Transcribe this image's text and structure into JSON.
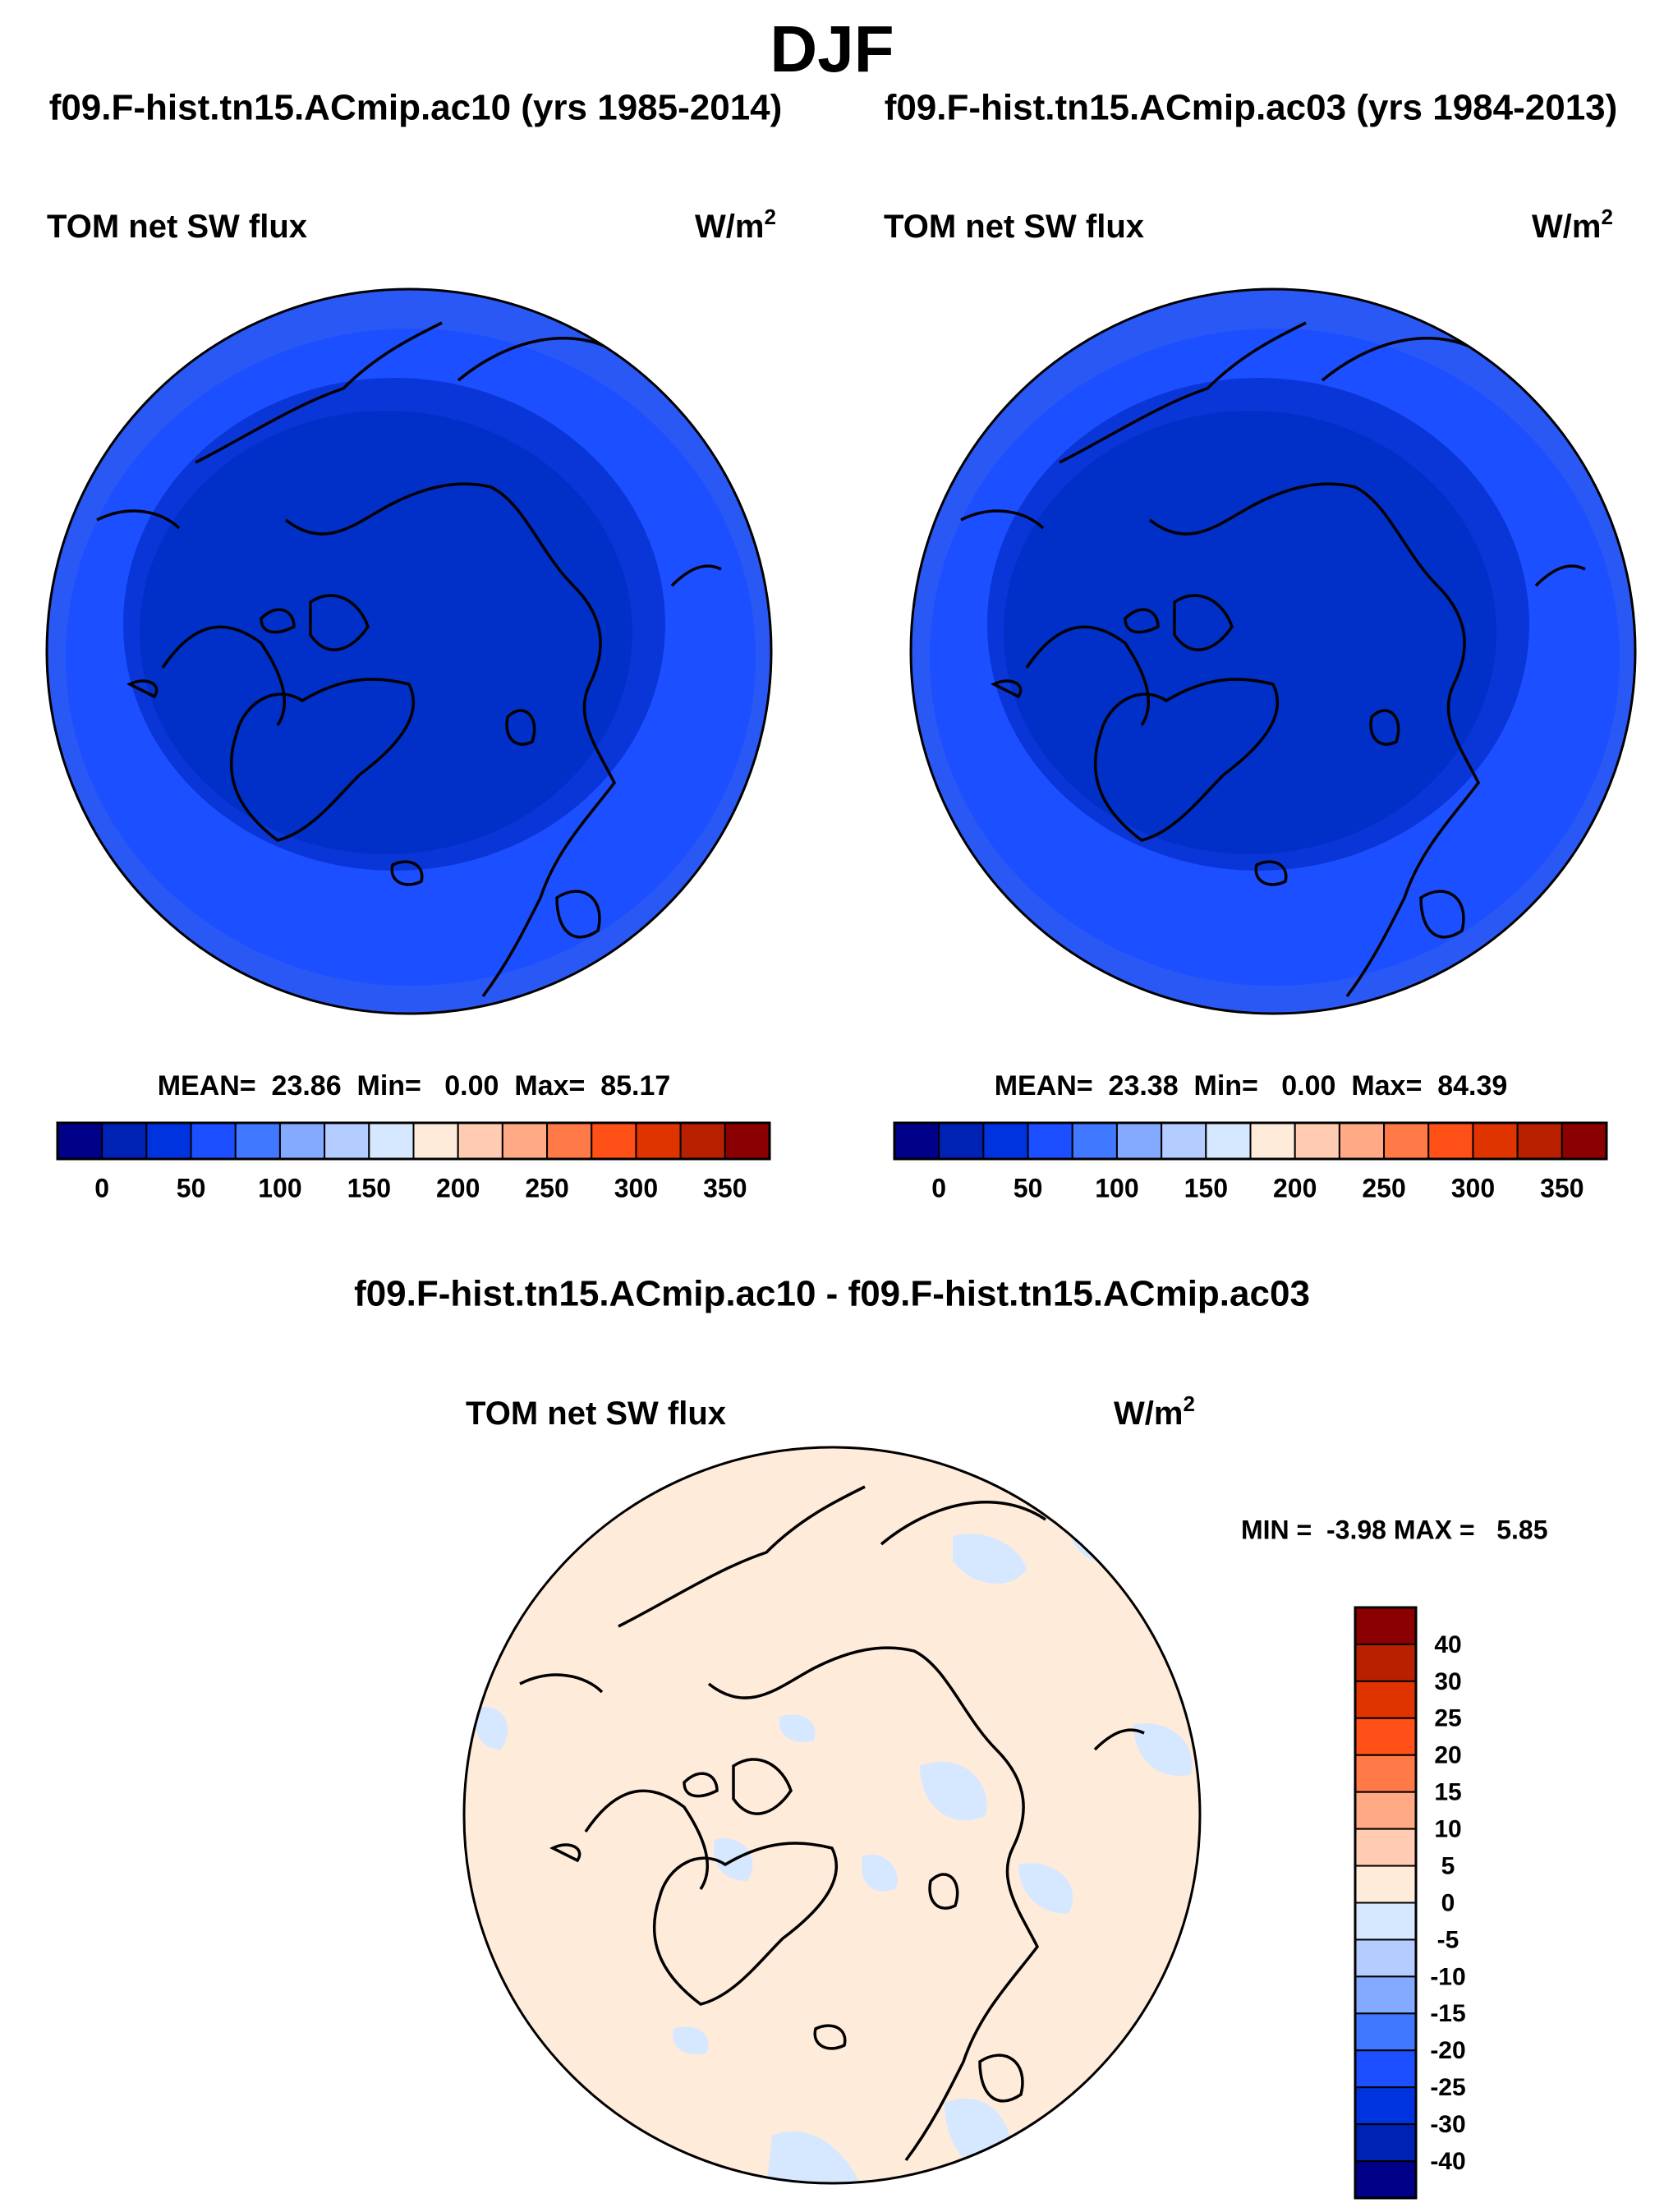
{
  "title": "DJF",
  "case_left": "f09.F-hist.tn15.ACmip.ac10 (yrs 1985-2014)",
  "case_right": "f09.F-hist.tn15.ACmip.ac03 (yrs 1984-2013)",
  "diff_title": "f09.F-hist.tn15.ACmip.ac10 - f09.F-hist.tn15.ACmip.ac03",
  "chart_data": [
    {
      "type": "heatmap",
      "projection": "north polar stereographic",
      "variable": "TOM net SW flux",
      "units_base": "W/m",
      "units_exp": "2",
      "stats": "MEAN=  23.86  Min=   0.00  Max=  85.17",
      "mean": 23.86,
      "min": 0.0,
      "max": 85.17,
      "colorbar": {
        "orientation": "horizontal",
        "levels": [
          0,
          25,
          50,
          75,
          100,
          125,
          150,
          175,
          200,
          225,
          250,
          275,
          300,
          325,
          350
        ],
        "tick_labels": [
          "0",
          "50",
          "100",
          "150",
          "200",
          "250",
          "300",
          "350"
        ],
        "colors": [
          "#000088",
          "#0022b4",
          "#0033e0",
          "#1c4fff",
          "#4078ff",
          "#84aaff",
          "#b4ccff",
          "#d6e8ff",
          "#ffebda",
          "#ffcbb2",
          "#ffaa84",
          "#ff7a46",
          "#ff5018",
          "#e03400",
          "#b82000",
          "#8b0000"
        ]
      }
    },
    {
      "type": "heatmap",
      "projection": "north polar stereographic",
      "variable": "TOM net SW flux",
      "units_base": "W/m",
      "units_exp": "2",
      "stats": "MEAN=  23.38  Min=   0.00  Max=  84.39",
      "mean": 23.38,
      "min": 0.0,
      "max": 84.39,
      "colorbar": {
        "orientation": "horizontal",
        "levels": [
          0,
          25,
          50,
          75,
          100,
          125,
          150,
          175,
          200,
          225,
          250,
          275,
          300,
          325,
          350
        ],
        "tick_labels": [
          "0",
          "50",
          "100",
          "150",
          "200",
          "250",
          "300",
          "350"
        ],
        "colors": [
          "#000088",
          "#0022b4",
          "#0033e0",
          "#1c4fff",
          "#4078ff",
          "#84aaff",
          "#b4ccff",
          "#d6e8ff",
          "#ffebda",
          "#ffcbb2",
          "#ffaa84",
          "#ff7a46",
          "#ff5018",
          "#e03400",
          "#b82000",
          "#8b0000"
        ]
      }
    },
    {
      "type": "heatmap",
      "projection": "north polar stereographic",
      "variable": "TOM net SW flux",
      "units_base": "W/m",
      "units_exp": "2",
      "stats": "MIN =  -3.98 MAX =   5.85",
      "min": -3.98,
      "max": 5.85,
      "colorbar": {
        "orientation": "vertical",
        "levels": [
          -40,
          -30,
          -25,
          -20,
          -15,
          -10,
          -5,
          0,
          5,
          10,
          15,
          20,
          25,
          30,
          40
        ],
        "tick_labels": [
          "40",
          "30",
          "25",
          "20",
          "15",
          "10",
          "5",
          "0",
          "-5",
          "-10",
          "-15",
          "-20",
          "-25",
          "-30",
          "-40"
        ],
        "colors": [
          "#8b0000",
          "#b82000",
          "#e03400",
          "#ff5018",
          "#ff7a46",
          "#ffaa84",
          "#ffcbb2",
          "#ffebda",
          "#d6e8ff",
          "#b4ccff",
          "#84aaff",
          "#4078ff",
          "#1c4fff",
          "#0033e0",
          "#0022b4",
          "#000088"
        ]
      }
    }
  ]
}
